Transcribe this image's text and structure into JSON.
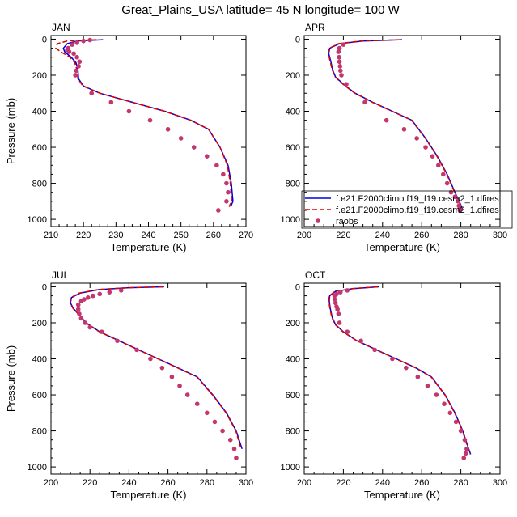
{
  "figure_title": "Great_Plains_USA  latitude= 45 N longitude= 100 W",
  "colors": {
    "model1": "#0000dd",
    "model2": "#dd0000",
    "obs": "#c2386e"
  },
  "chart_data": [
    {
      "type": "line",
      "panel": "JAN",
      "title": "JAN",
      "xlabel": "Temperature (K)",
      "ylabel": "Pressure (mb)",
      "xlim": [
        210,
        270
      ],
      "ylim": [
        1000,
        0
      ],
      "xticks": [
        "210",
        "220",
        "230",
        "240",
        "250",
        "260",
        "270"
      ],
      "yticks": [
        "0",
        "200",
        "400",
        "600",
        "800",
        "1000"
      ],
      "series": [
        {
          "name": "f.e21.F2000climo.f19_f19.cesm2_1.dfires",
          "style": "solid",
          "x": [
            226,
            218,
            215,
            213.8,
            214.2,
            216.2,
            217.7,
            218.3,
            218.5,
            220,
            225,
            235,
            245,
            253,
            258.5,
            262,
            264.5,
            265.5,
            266,
            265.3
          ],
          "y": [
            3,
            10,
            25,
            50,
            70,
            100,
            130,
            170,
            220,
            260,
            300,
            350,
            400,
            450,
            500,
            600,
            700,
            800,
            900,
            930
          ]
        },
        {
          "name": "f.e21.F2000climo.f19_f19.cesm2_1.dfires",
          "style": "dashed",
          "x": [
            224,
            215,
            212,
            211.5,
            213,
            215.8,
            217.3,
            218,
            218.3,
            219.8,
            225,
            235,
            245,
            253,
            258.5,
            262,
            264.3,
            265.2,
            265.6,
            264.8
          ],
          "y": [
            3,
            10,
            25,
            50,
            70,
            100,
            130,
            170,
            220,
            260,
            300,
            350,
            400,
            450,
            500,
            600,
            700,
            800,
            900,
            930
          ]
        },
        {
          "name": "raobs",
          "style": "markers",
          "x": [
            222,
            220,
            218,
            216.5,
            215.3,
            215,
            215.6,
            217,
            218,
            218.8,
            218.5,
            217.8,
            217.5,
            222.5,
            228.5,
            234,
            240.5,
            246,
            250,
            254,
            258,
            261,
            263,
            264,
            264.5,
            264,
            261.5
          ],
          "y": [
            5,
            10,
            20,
            30,
            50,
            60,
            70,
            80,
            100,
            125,
            150,
            175,
            200,
            300,
            350,
            400,
            450,
            500,
            550,
            600,
            650,
            700,
            750,
            800,
            850,
            900,
            950
          ]
        }
      ]
    },
    {
      "type": "line",
      "panel": "APR",
      "title": "APR",
      "xlabel": "Temperature (K)",
      "ylabel": "",
      "xlim": [
        200,
        300
      ],
      "ylim": [
        1000,
        0
      ],
      "xticks": [
        "200",
        "220",
        "240",
        "260",
        "280",
        "300"
      ],
      "yticks": [
        "0",
        "200",
        "400",
        "600",
        "800",
        "1000"
      ],
      "legend": {
        "placement": "bottom-right",
        "entries": [
          "f.e21.F2000climo.f19_f19.cesm2_1.dfires",
          "f.e21.F2000climo.f19_f19.cesm2_1.dfires",
          "raobs"
        ]
      },
      "series": [
        {
          "name": "f.e21.F2000climo.f19_f19.cesm2_1.dfires",
          "style": "solid",
          "x": [
            250,
            230,
            218,
            213,
            212.5,
            213.5,
            214.5,
            216,
            220,
            226,
            235,
            245,
            255,
            262,
            268,
            273,
            277,
            280,
            281
          ],
          "y": [
            3,
            10,
            25,
            50,
            80,
            120,
            170,
            210,
            250,
            300,
            350,
            400,
            450,
            550,
            650,
            750,
            850,
            920,
            950
          ]
        },
        {
          "name": "f.e21.F2000climo.f19_f19.cesm2_1.dfires",
          "style": "dashed",
          "x": [
            249,
            229,
            217.5,
            212.8,
            212.3,
            213.2,
            214.3,
            215.8,
            219.8,
            225.8,
            234.8,
            244.8,
            254.8,
            261.8,
            267.8,
            272.8,
            276.8,
            279.8,
            280.8
          ],
          "y": [
            3,
            10,
            25,
            50,
            80,
            120,
            170,
            210,
            250,
            300,
            350,
            400,
            450,
            550,
            650,
            750,
            850,
            920,
            950
          ]
        },
        {
          "name": "raobs",
          "style": "markers",
          "x": [
            220,
            218,
            217.5,
            217.8,
            218,
            218.3,
            218.5,
            219,
            221.5,
            231,
            242,
            251,
            257.5,
            262,
            265.5,
            268.5,
            271,
            273,
            275,
            277,
            278.5,
            279,
            279.5,
            279.5
          ],
          "y": [
            30,
            50,
            70,
            100,
            125,
            150,
            175,
            200,
            250,
            350,
            450,
            500,
            550,
            600,
            650,
            700,
            750,
            800,
            850,
            875,
            900,
            925,
            940,
            950
          ]
        }
      ]
    },
    {
      "type": "line",
      "panel": "JUL",
      "title": "JUL",
      "xlabel": "Temperature (K)",
      "ylabel": "Pressure (mb)",
      "xlim": [
        200,
        300
      ],
      "ylim": [
        1000,
        0
      ],
      "xticks": [
        "200",
        "220",
        "240",
        "260",
        "280",
        "300"
      ],
      "yticks": [
        "0",
        "200",
        "400",
        "600",
        "800",
        "1000"
      ],
      "series": [
        {
          "name": "f.e21.F2000climo.f19_f19.cesm2_1.dfires",
          "style": "solid",
          "x": [
            258,
            240,
            225,
            215,
            210.5,
            210,
            211.5,
            214,
            218,
            225,
            235,
            245,
            255,
            265,
            275,
            283,
            290,
            295,
            298
          ],
          "y": [
            0,
            5,
            15,
            35,
            60,
            90,
            120,
            150,
            200,
            250,
            300,
            350,
            400,
            450,
            500,
            600,
            700,
            800,
            900
          ]
        },
        {
          "name": "f.e21.F2000climo.f19_f19.cesm2_1.dfires",
          "style": "dashed",
          "x": [
            257.5,
            239.5,
            224.5,
            214.5,
            210.2,
            209.8,
            211.3,
            213.8,
            217.8,
            224.8,
            234.8,
            244.8,
            254.8,
            264.8,
            274.8,
            282.8,
            289.8,
            294.8,
            297.5
          ],
          "y": [
            0,
            5,
            15,
            35,
            60,
            90,
            120,
            150,
            200,
            250,
            300,
            350,
            400,
            450,
            500,
            600,
            700,
            800,
            900
          ]
        },
        {
          "name": "raobs",
          "style": "markers",
          "x": [
            236,
            230,
            225,
            221.5,
            219,
            217,
            215.5,
            214,
            214,
            214.5,
            215.5,
            217.5,
            220,
            226,
            234,
            244,
            251,
            257,
            262,
            266,
            270,
            275,
            280,
            284,
            288,
            292,
            294,
            295
          ],
          "y": [
            20,
            30,
            40,
            50,
            60,
            70,
            80,
            100,
            125,
            150,
            175,
            200,
            225,
            250,
            300,
            350,
            400,
            450,
            500,
            550,
            600,
            650,
            700,
            750,
            800,
            850,
            900,
            950
          ]
        }
      ]
    },
    {
      "type": "line",
      "panel": "OCT",
      "title": "OCT",
      "xlabel": "Temperature (K)",
      "ylabel": "",
      "xlim": [
        200,
        300
      ],
      "ylim": [
        1000,
        0
      ],
      "xticks": [
        "200",
        "220",
        "240",
        "260",
        "280",
        "300"
      ],
      "yticks": [
        "0",
        "200",
        "400",
        "600",
        "800",
        "1000"
      ],
      "series": [
        {
          "name": "f.e21.F2000climo.f19_f19.cesm2_1.dfires",
          "style": "solid",
          "x": [
            238,
            225,
            216,
            213,
            212.8,
            213.3,
            214.3,
            216,
            220,
            227,
            237,
            247,
            257,
            265,
            272,
            277,
            281,
            284,
            285
          ],
          "y": [
            0,
            10,
            25,
            50,
            80,
            120,
            170,
            210,
            250,
            300,
            350,
            400,
            450,
            500,
            600,
            700,
            800,
            900,
            930
          ]
        },
        {
          "name": "f.e21.F2000climo.f19_f19.cesm2_1.dfires",
          "style": "dashed",
          "x": [
            237.5,
            224.5,
            215.8,
            212.8,
            212.6,
            213.1,
            214.1,
            215.8,
            219.8,
            226.8,
            236.8,
            246.8,
            256.8,
            264.8,
            271.8,
            276.8,
            280.8,
            283.8,
            284.8
          ],
          "y": [
            0,
            10,
            25,
            50,
            80,
            120,
            170,
            210,
            250,
            300,
            350,
            400,
            450,
            500,
            600,
            700,
            800,
            900,
            930
          ]
        },
        {
          "name": "raobs",
          "style": "markers",
          "x": [
            222,
            218.5,
            216.5,
            215.5,
            215.5,
            216,
            216.5,
            217,
            217.5,
            218,
            222,
            229,
            236,
            245,
            252,
            258,
            263,
            267.5,
            271.5,
            274.5,
            277.5,
            280,
            282,
            283,
            282.5,
            281.5
          ],
          "y": [
            20,
            30,
            40,
            50,
            70,
            90,
            110,
            125,
            150,
            200,
            250,
            300,
            350,
            400,
            450,
            500,
            550,
            600,
            650,
            700,
            750,
            800,
            850,
            900,
            925,
            950
          ]
        }
      ]
    }
  ]
}
